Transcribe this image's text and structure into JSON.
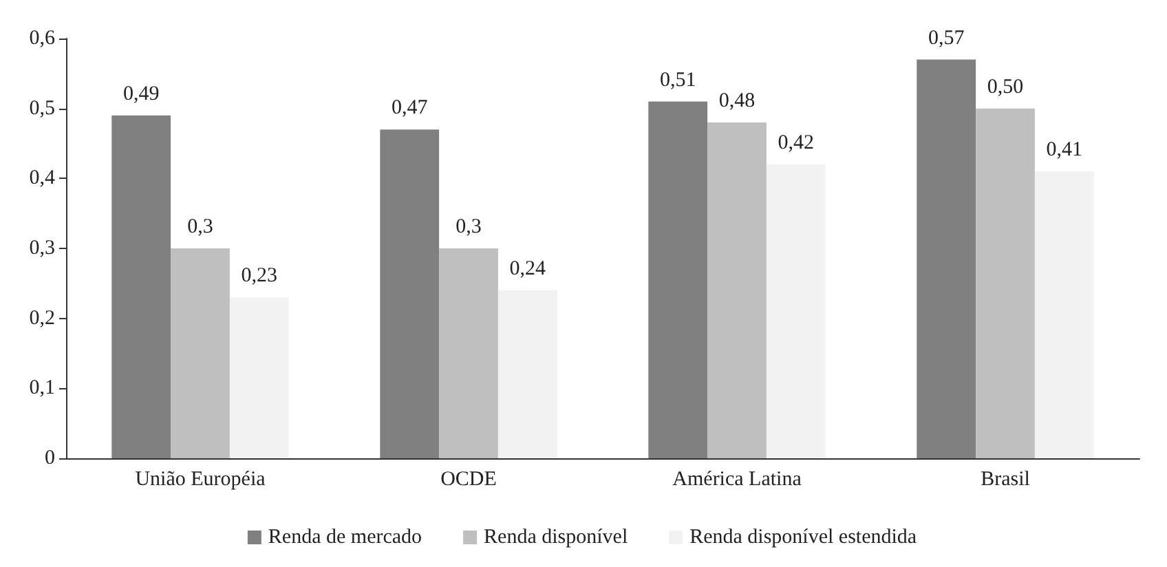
{
  "chart_data": {
    "type": "bar",
    "categories": [
      "União Européia",
      "OCDE",
      "América Latina",
      "Brasil"
    ],
    "series": [
      {
        "name": "Renda de mercado",
        "color": "#808080",
        "values": [
          0.49,
          0.47,
          0.51,
          0.57
        ],
        "value_labels": [
          "0,49",
          "0,47",
          "0,51",
          "0,57"
        ]
      },
      {
        "name": "Renda disponível",
        "color": "#bfbfbf",
        "values": [
          0.3,
          0.3,
          0.48,
          0.5
        ],
        "value_labels": [
          "0,3",
          "0,3",
          "0,48",
          "0,50"
        ]
      },
      {
        "name": "Renda disponível estendida",
        "color": "#f2f2f2",
        "values": [
          0.23,
          0.24,
          0.42,
          0.41
        ],
        "value_labels": [
          "0,23",
          "0,24",
          "0,42",
          "0,41"
        ]
      }
    ],
    "ylim": [
      0,
      0.6
    ],
    "yticks": [
      {
        "value": 0,
        "label": "0"
      },
      {
        "value": 0.1,
        "label": "0,1"
      },
      {
        "value": 0.2,
        "label": "0,2"
      },
      {
        "value": 0.3,
        "label": "0,3"
      },
      {
        "value": 0.4,
        "label": "0,4"
      },
      {
        "value": 0.5,
        "label": "0,5"
      },
      {
        "value": 0.6,
        "label": "0,6"
      }
    ],
    "grid": false,
    "legend": "bottom"
  }
}
